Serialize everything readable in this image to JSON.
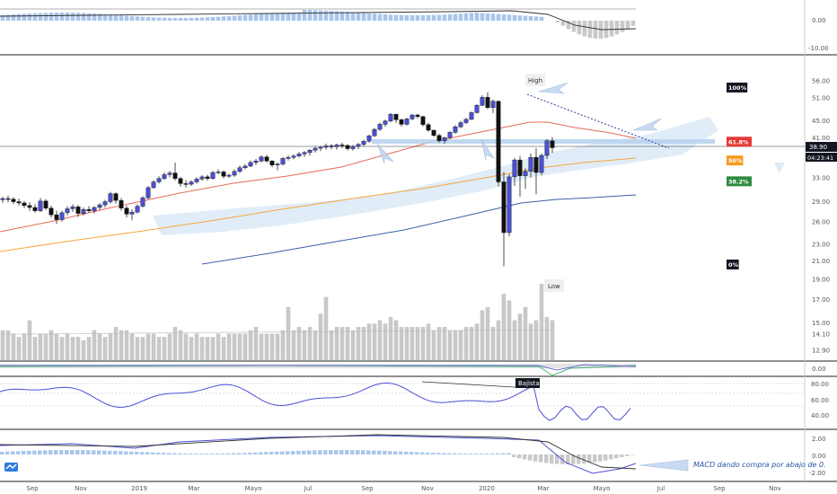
{
  "chart_data": {
    "type": "candlestick",
    "price_axis": {
      "ticks": [
        56.0,
        51.0,
        45.0,
        41.0,
        38.9,
        33.0,
        29.0,
        26.0,
        23.0,
        21.0,
        19.0,
        17.0,
        15.0,
        14.1,
        12.9
      ],
      "last_price": "38.90",
      "countdown": "04:23:41"
    },
    "time_axis": {
      "labels": [
        "Sep",
        "Nov",
        "2019",
        "Mar",
        "Mayo",
        "Jul",
        "Sep",
        "Nov",
        "2020",
        "Mar",
        "Mayo",
        "Jul",
        "Sep",
        "Nov"
      ]
    },
    "annotations": {
      "high": "High",
      "low": "Low",
      "bajista": "Bajista",
      "macd_note": "MACD dando compra por abajo de 0."
    },
    "fib_levels": [
      {
        "label": "100%",
        "color": "#131722",
        "value": 54.0
      },
      {
        "label": "61.8%",
        "color": "#e53935",
        "value": 40.2
      },
      {
        "label": "50%",
        "color": "#f59b21",
        "value": 36.3
      },
      {
        "label": "38.2%",
        "color": "#2e8b3e",
        "value": 32.4
      },
      {
        "label": "0%",
        "color": "#131722",
        "value": 20.6
      }
    ],
    "panes": {
      "top": {
        "ticks": [
          "0.00",
          "-10.00"
        ]
      },
      "osc1": {
        "ticks": [
          "0.00"
        ]
      },
      "rsi": {
        "ticks": [
          "80.00",
          "60.00",
          "40.00"
        ]
      },
      "macd": {
        "ticks": [
          "2.00",
          "0.00",
          "-2.00"
        ]
      }
    },
    "candles": [
      [
        29.3,
        29.8,
        28.8,
        29.5
      ],
      [
        29.5,
        30.0,
        28.9,
        29.4
      ],
      [
        29.4,
        29.7,
        28.6,
        29.0
      ],
      [
        29.0,
        29.5,
        28.4,
        28.8
      ],
      [
        28.8,
        29.1,
        28.0,
        28.4
      ],
      [
        28.4,
        28.9,
        27.6,
        28.1
      ],
      [
        28.1,
        28.6,
        27.3,
        27.6
      ],
      [
        27.6,
        29.6,
        27.4,
        29.1
      ],
      [
        29.1,
        29.4,
        27.7,
        28.0
      ],
      [
        28.0,
        28.4,
        26.6,
        27.0
      ],
      [
        27.0,
        27.6,
        25.7,
        26.3
      ],
      [
        26.3,
        27.6,
        26.0,
        27.3
      ],
      [
        27.3,
        28.3,
        26.9,
        27.9
      ],
      [
        27.9,
        28.6,
        27.4,
        28.2
      ],
      [
        28.2,
        28.5,
        26.7,
        27.2
      ],
      [
        27.2,
        28.1,
        26.9,
        27.8
      ],
      [
        27.8,
        28.3,
        27.3,
        27.6
      ],
      [
        27.6,
        28.3,
        27.2,
        28.1
      ],
      [
        28.1,
        28.8,
        27.7,
        28.5
      ],
      [
        28.5,
        29.3,
        28.1,
        29.0
      ],
      [
        29.0,
        30.6,
        28.7,
        30.3
      ],
      [
        30.3,
        30.5,
        28.7,
        29.2
      ],
      [
        29.2,
        29.6,
        27.6,
        28.0
      ],
      [
        28.0,
        28.4,
        26.6,
        27.1
      ],
      [
        27.1,
        27.8,
        26.2,
        27.4
      ],
      [
        27.4,
        28.6,
        27.2,
        28.3
      ],
      [
        28.3,
        29.9,
        28.1,
        29.6
      ],
      [
        29.6,
        31.6,
        29.4,
        31.3
      ],
      [
        31.3,
        32.6,
        31.1,
        32.3
      ],
      [
        32.3,
        33.3,
        32.0,
        32.9
      ],
      [
        32.9,
        34.0,
        32.6,
        33.6
      ],
      [
        33.6,
        34.3,
        33.1,
        33.9
      ],
      [
        33.9,
        35.9,
        32.5,
        32.9
      ],
      [
        32.9,
        33.2,
        31.5,
        32.0
      ],
      [
        32.0,
        32.6,
        31.3,
        31.9
      ],
      [
        31.9,
        32.6,
        31.6,
        32.3
      ],
      [
        32.3,
        33.1,
        32.0,
        32.8
      ],
      [
        32.8,
        33.5,
        32.5,
        33.2
      ],
      [
        33.2,
        33.6,
        32.5,
        32.9
      ],
      [
        32.9,
        34.3,
        32.7,
        34.0
      ],
      [
        34.0,
        34.6,
        33.7,
        34.1
      ],
      [
        34.1,
        34.4,
        32.9,
        33.3
      ],
      [
        33.3,
        33.8,
        33.0,
        33.5
      ],
      [
        33.5,
        34.6,
        33.2,
        34.2
      ],
      [
        34.2,
        35.3,
        33.9,
        34.9
      ],
      [
        34.9,
        35.6,
        34.6,
        35.2
      ],
      [
        35.2,
        36.3,
        35.0,
        35.9
      ],
      [
        35.9,
        36.6,
        35.4,
        36.2
      ],
      [
        36.2,
        37.3,
        35.9,
        37.0
      ],
      [
        37.0,
        37.4,
        35.9,
        36.2
      ],
      [
        36.2,
        36.4,
        35.0,
        35.4
      ],
      [
        35.4,
        35.9,
        34.4,
        35.6
      ],
      [
        35.6,
        37.0,
        35.3,
        36.7
      ],
      [
        36.7,
        37.3,
        36.3,
        36.9
      ],
      [
        36.9,
        37.5,
        36.5,
        37.2
      ],
      [
        37.2,
        38.0,
        36.9,
        37.6
      ],
      [
        37.6,
        38.2,
        37.0,
        37.9
      ],
      [
        37.9,
        38.6,
        37.3,
        38.4
      ],
      [
        38.4,
        39.2,
        37.9,
        38.8
      ],
      [
        38.8,
        39.3,
        38.2,
        39.0
      ],
      [
        39.0,
        39.8,
        38.5,
        39.3
      ],
      [
        39.3,
        39.7,
        38.6,
        39.1
      ],
      [
        39.1,
        39.8,
        38.5,
        39.5
      ],
      [
        39.5,
        40.0,
        38.8,
        39.4
      ],
      [
        39.4,
        39.6,
        38.3,
        38.7
      ],
      [
        38.7,
        39.5,
        38.3,
        39.2
      ],
      [
        39.2,
        39.9,
        38.6,
        39.6
      ],
      [
        39.6,
        40.6,
        39.2,
        40.3
      ],
      [
        40.3,
        41.8,
        40.0,
        41.5
      ],
      [
        41.5,
        43.3,
        41.3,
        43.0
      ],
      [
        43.0,
        44.6,
        42.6,
        44.2
      ],
      [
        44.2,
        45.3,
        43.6,
        45.0
      ],
      [
        45.0,
        47.0,
        44.7,
        46.7
      ],
      [
        46.7,
        46.8,
        44.5,
        45.3
      ],
      [
        45.3,
        45.6,
        43.6,
        44.2
      ],
      [
        44.2,
        45.8,
        43.9,
        45.5
      ],
      [
        45.5,
        46.8,
        45.2,
        46.5
      ],
      [
        46.5,
        46.8,
        45.6,
        46.1
      ],
      [
        46.1,
        46.3,
        43.7,
        44.1
      ],
      [
        44.1,
        44.6,
        42.4,
        42.8
      ],
      [
        42.8,
        42.9,
        41.3,
        41.6
      ],
      [
        41.6,
        42.0,
        40.0,
        40.4
      ],
      [
        40.4,
        41.3,
        39.8,
        41.1
      ],
      [
        41.1,
        42.6,
        40.8,
        42.3
      ],
      [
        42.3,
        44.0,
        42.0,
        43.6
      ],
      [
        43.6,
        45.0,
        43.3,
        44.6
      ],
      [
        44.6,
        45.8,
        44.2,
        45.4
      ],
      [
        45.4,
        47.4,
        45.2,
        47.1
      ],
      [
        47.1,
        49.3,
        46.9,
        49.0
      ],
      [
        49.0,
        51.8,
        48.8,
        51.2
      ],
      [
        51.2,
        52.6,
        48.0,
        48.4
      ],
      [
        48.4,
        50.6,
        47.0,
        50.1
      ],
      [
        50.1,
        50.3,
        31.5,
        32.3
      ],
      [
        32.3,
        34.1,
        20.4,
        24.5
      ],
      [
        24.5,
        33.7,
        24.0,
        33.2
      ],
      [
        33.2,
        36.8,
        31.6,
        36.4
      ],
      [
        36.4,
        37.2,
        29.8,
        33.4
      ],
      [
        33.4,
        34.8,
        31.1,
        34.2
      ],
      [
        34.2,
        37.7,
        33.1,
        36.9
      ],
      [
        36.9,
        38.8,
        30.2,
        34.0
      ],
      [
        34.0,
        37.7,
        33.5,
        37.3
      ],
      [
        37.3,
        40.8,
        36.6,
        40.4
      ],
      [
        40.4,
        41.2,
        37.8,
        38.9
      ]
    ],
    "volumes": [
      9,
      9,
      8,
      7,
      8,
      8,
      7,
      8,
      8,
      9,
      8,
      7,
      8,
      7,
      7,
      6,
      7,
      9,
      8,
      7,
      8,
      10,
      9,
      9,
      8,
      7,
      7,
      8,
      8,
      7,
      7,
      8,
      10,
      9,
      8,
      7,
      8,
      7,
      7,
      7,
      8,
      7,
      8,
      8,
      8,
      8,
      9,
      10,
      8,
      8,
      8,
      8,
      9,
      9,
      9,
      10,
      9,
      10,
      9,
      10,
      10,
      9,
      10,
      10,
      10,
      9,
      10,
      10,
      11,
      11,
      12,
      11,
      13,
      12,
      10,
      10,
      10,
      10,
      10,
      11,
      9,
      10,
      10,
      9,
      9,
      9,
      10,
      10,
      11,
      13,
      10,
      10,
      12,
      14,
      13,
      12,
      11,
      10,
      11,
      12,
      12,
      13,
      12
    ],
    "volume_extra": {
      "spike_indices": [
        5,
        53,
        59,
        60,
        89,
        90,
        93,
        94,
        96,
        97,
        100
      ],
      "spike_values": [
        12,
        16,
        14,
        19,
        15,
        16,
        20,
        18,
        14,
        16,
        23
      ]
    }
  }
}
